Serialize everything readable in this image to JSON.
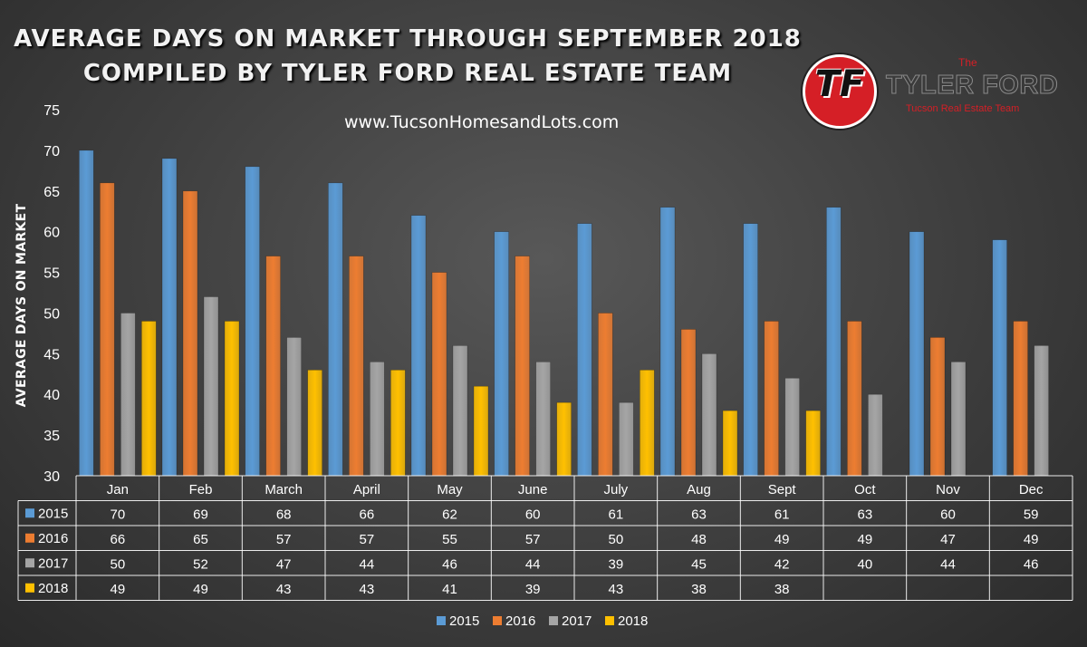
{
  "header": {
    "title_line1": "AVERAGE DAYS ON MARKET THROUGH SEPTEMBER 2018",
    "title_line2": "COMPILED BY TYLER FORD REAL ESTATE TEAM",
    "website": "www.TucsonHomesandLots.com"
  },
  "logo": {
    "mark": "TF",
    "the": "The",
    "name": "TYLER FORD",
    "tagline": "Tucson Real Estate Team"
  },
  "chart_data": {
    "type": "bar",
    "ylabel": "AVERAGE DAYS ON MARKET",
    "xlabel": "",
    "ylim": [
      30,
      75
    ],
    "yticks": [
      30,
      35,
      40,
      45,
      50,
      55,
      60,
      65,
      70,
      75
    ],
    "grid": false,
    "legend_position": "bottom",
    "has_data_table": true,
    "categories": [
      "Jan",
      "Feb",
      "March",
      "April",
      "May",
      "June",
      "July",
      "Aug",
      "Sept",
      "Oct",
      "Nov",
      "Dec"
    ],
    "series": [
      {
        "name": "2015",
        "color": "#5b9bd5",
        "values": [
          70,
          69,
          68,
          66,
          62,
          60,
          61,
          63,
          61,
          63,
          60,
          59
        ]
      },
      {
        "name": "2016",
        "color": "#ed7d31",
        "values": [
          66,
          65,
          57,
          57,
          55,
          57,
          50,
          48,
          49,
          49,
          47,
          49
        ]
      },
      {
        "name": "2017",
        "color": "#a5a5a5",
        "values": [
          50,
          52,
          47,
          44,
          46,
          44,
          39,
          45,
          42,
          40,
          44,
          46
        ]
      },
      {
        "name": "2018",
        "color": "#ffc000",
        "values": [
          49,
          49,
          43,
          43,
          41,
          39,
          43,
          38,
          38,
          null,
          null,
          null
        ]
      }
    ]
  }
}
